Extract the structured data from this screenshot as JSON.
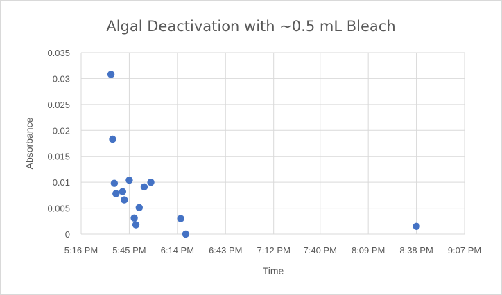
{
  "chart_data": {
    "type": "scatter",
    "title": "Algal Deactivation with ~0.5 mL Bleach",
    "xlabel": "Time",
    "ylabel": "Absorbance",
    "x_unit": "time of day (minutes since midnight)",
    "xlim": [
      316,
      547
    ],
    "ylim": [
      0,
      0.035
    ],
    "x_ticks": [
      316,
      345,
      374,
      403,
      432,
      460,
      489,
      518,
      547
    ],
    "x_tick_labels": [
      "5:16 PM",
      "5:45 PM",
      "6:14 PM",
      "6:43 PM",
      "7:12 PM",
      "7:40 PM",
      "8:09 PM",
      "8:38 PM",
      "9:07 PM"
    ],
    "y_ticks": [
      0,
      0.005,
      0.01,
      0.015,
      0.02,
      0.025,
      0.03,
      0.035
    ],
    "y_tick_labels": [
      "0",
      "0.005",
      "0.01",
      "0.015",
      "0.02",
      "0.025",
      "0.03",
      "0.035"
    ],
    "grid": "vertical and horizontal major gridlines",
    "legend": "none",
    "marker_color": "#4472C4",
    "points": [
      {
        "x": "5:34 PM",
        "y": 0.0308
      },
      {
        "x": "5:35 PM",
        "y": 0.0183
      },
      {
        "x": "5:36 PM",
        "y": 0.0098
      },
      {
        "x": "5:37 PM",
        "y": 0.0078
      },
      {
        "x": "5:41 PM",
        "y": 0.0082
      },
      {
        "x": "5:42 PM",
        "y": 0.0066
      },
      {
        "x": "5:45 PM",
        "y": 0.0104
      },
      {
        "x": "5:48 PM",
        "y": 0.0031
      },
      {
        "x": "5:49 PM",
        "y": 0.0018
      },
      {
        "x": "5:51 PM",
        "y": 0.0051
      },
      {
        "x": "5:54 PM",
        "y": 0.0091
      },
      {
        "x": "5:58 PM",
        "y": 0.01
      },
      {
        "x": "6:16 PM",
        "y": 0.003
      },
      {
        "x": "6:19 PM",
        "y": 0.0
      },
      {
        "x": "8:38 PM",
        "y": 0.0015
      }
    ]
  },
  "colors": {
    "marker": "#4472C4",
    "gridline": "#d9d9d9",
    "text": "#595959",
    "border": "#d9d9d9"
  }
}
